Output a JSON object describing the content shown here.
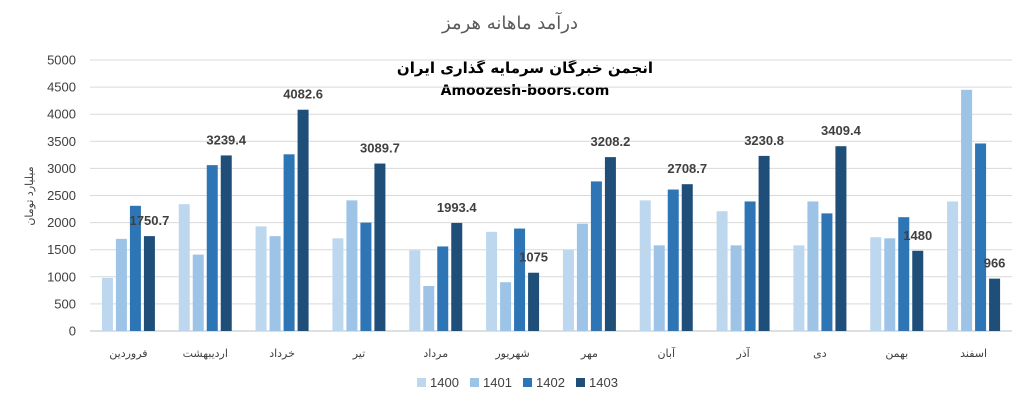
{
  "chart_data": {
    "type": "bar",
    "title": "درآمد ماهانه هرمز",
    "watermark": {
      "line1": "انجمن خبرگان سرمایه گذاری ایران",
      "line2": "Amoozesh-boors.com"
    },
    "ylabel": "میلیارد تومان",
    "xlabel": "",
    "ylim": [
      0,
      5000
    ],
    "yticks": [
      0,
      500,
      1000,
      1500,
      2000,
      2500,
      3000,
      3500,
      4000,
      4500,
      5000
    ],
    "grid": true,
    "legend_position": "bottom",
    "categories": [
      "فروردین",
      "اردیبهشت",
      "خرداد",
      "تیر",
      "مرداد",
      "شهریور",
      "مهر",
      "آبان",
      "آذر",
      "دی",
      "بهمن",
      "اسفند"
    ],
    "series": [
      {
        "name": "1400",
        "color": "#bdd7ee",
        "values": [
          980,
          2340,
          1930,
          1710,
          1490,
          1830,
          1500,
          2410,
          2210,
          1580,
          1730,
          2390
        ]
      },
      {
        "name": "1401",
        "color": "#9dc3e6",
        "values": [
          1700,
          1410,
          1750,
          2410,
          830,
          900,
          1980,
          1580,
          1580,
          2390,
          1710,
          4450
        ]
      },
      {
        "name": "1402",
        "color": "#2e75b6",
        "values": [
          2310,
          3060,
          3260,
          2000,
          1560,
          1890,
          2760,
          2610,
          2390,
          2170,
          2100,
          3460
        ]
      },
      {
        "name": "1403",
        "color": "#1f4e79",
        "values": [
          1750.7,
          3239.4,
          4082.6,
          3089.7,
          1993.4,
          1075,
          3208.2,
          2708.7,
          3230.8,
          3409.4,
          1480,
          966
        ]
      }
    ],
    "data_labels": {
      "series": "1403",
      "values": [
        "1750.7",
        "3239.4",
        "4082.6",
        "3089.7",
        "1993.4",
        "1075",
        "3208.2",
        "2708.7",
        "3230.8",
        "3409.4",
        "1480",
        "966"
      ]
    }
  }
}
